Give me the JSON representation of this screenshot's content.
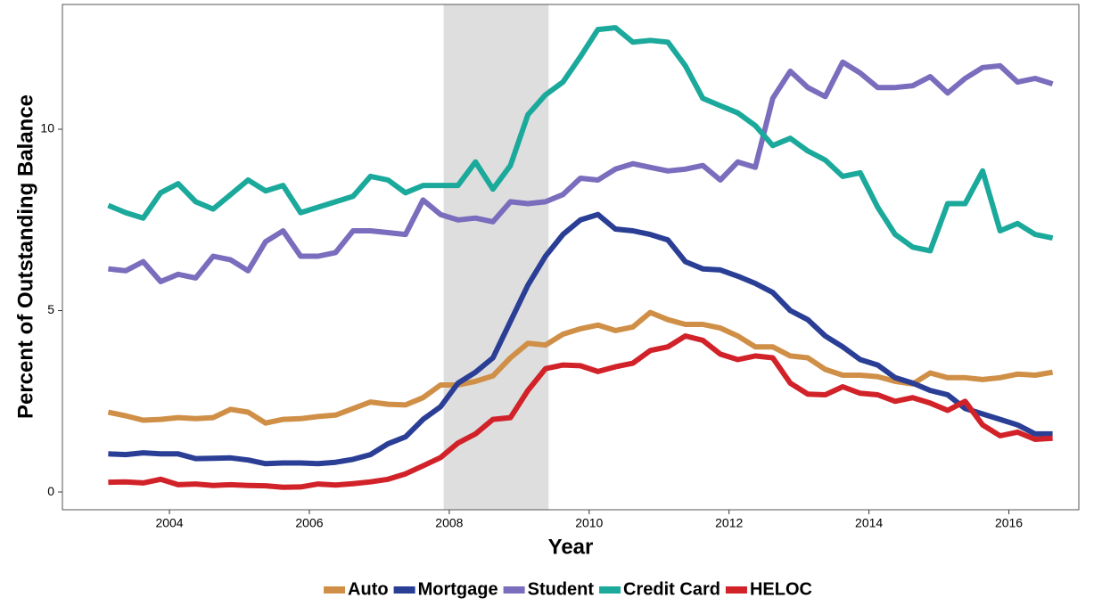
{
  "chart_data": {
    "type": "line",
    "xlabel": "Year",
    "ylabel": "Percent of Outstanding Balance",
    "x": [
      2003.125,
      2003.375,
      2003.625,
      2003.875,
      2004.125,
      2004.375,
      2004.625,
      2004.875,
      2005.125,
      2005.375,
      2005.625,
      2005.875,
      2006.125,
      2006.375,
      2006.625,
      2006.875,
      2007.125,
      2007.375,
      2007.625,
      2007.875,
      2008.125,
      2008.375,
      2008.625,
      2008.875,
      2009.125,
      2009.375,
      2009.625,
      2009.875,
      2010.125,
      2010.375,
      2010.625,
      2010.875,
      2011.125,
      2011.375,
      2011.625,
      2011.875,
      2012.125,
      2012.375,
      2012.625,
      2012.875,
      2013.125,
      2013.375,
      2013.625,
      2013.875,
      2014.125,
      2014.375,
      2014.625,
      2014.875,
      2015.125,
      2015.375,
      2015.625,
      2015.875,
      2016.125,
      2016.375,
      2016.625
    ],
    "series": [
      {
        "name": "Auto",
        "color": "#d08f47",
        "values": [
          2.2,
          2.1,
          1.98,
          2.0,
          2.05,
          2.02,
          2.05,
          2.28,
          2.2,
          1.9,
          2.0,
          2.02,
          2.08,
          2.12,
          2.3,
          2.48,
          2.42,
          2.4,
          2.6,
          2.95,
          2.95,
          3.05,
          3.2,
          3.7,
          4.1,
          4.05,
          4.35,
          4.5,
          4.6,
          4.45,
          4.55,
          4.95,
          4.75,
          4.62,
          4.62,
          4.52,
          4.3,
          4.0,
          4.0,
          3.75,
          3.7,
          3.38,
          3.22,
          3.22,
          3.18,
          3.05,
          2.98,
          3.28,
          3.15,
          3.15,
          3.1,
          3.15,
          3.25,
          3.22,
          3.3
        ]
      },
      {
        "name": "Mortgage",
        "color": "#2a3e96",
        "values": [
          1.05,
          1.03,
          1.08,
          1.05,
          1.05,
          0.92,
          0.93,
          0.94,
          0.88,
          0.78,
          0.8,
          0.8,
          0.78,
          0.82,
          0.9,
          1.03,
          1.33,
          1.52,
          2.0,
          2.35,
          3.0,
          3.3,
          3.7,
          4.7,
          5.7,
          6.5,
          7.1,
          7.5,
          7.65,
          7.25,
          7.2,
          7.1,
          6.95,
          6.35,
          6.15,
          6.12,
          5.95,
          5.75,
          5.5,
          5.0,
          4.75,
          4.3,
          4.0,
          3.65,
          3.5,
          3.15,
          3.0,
          2.8,
          2.68,
          2.3,
          2.15,
          2.0,
          1.85,
          1.6,
          1.6
        ]
      },
      {
        "name": "Student",
        "color": "#7b6dbd",
        "values": [
          6.15,
          6.1,
          6.35,
          5.8,
          6.0,
          5.9,
          6.5,
          6.4,
          6.1,
          6.9,
          7.2,
          6.5,
          6.5,
          6.6,
          7.2,
          7.2,
          7.15,
          7.1,
          8.05,
          7.65,
          7.5,
          7.55,
          7.45,
          8.0,
          7.95,
          8.0,
          8.2,
          8.65,
          8.6,
          8.9,
          9.05,
          8.95,
          8.85,
          8.9,
          9.0,
          8.6,
          9.1,
          8.95,
          10.85,
          11.6,
          11.15,
          10.9,
          11.85,
          11.55,
          11.15,
          11.15,
          11.2,
          11.45,
          11.0,
          11.4,
          11.7,
          11.75,
          11.3,
          11.4,
          11.25
        ]
      },
      {
        "name": "Credit Card",
        "color": "#1aa99b",
        "values": [
          7.9,
          7.7,
          7.55,
          8.25,
          8.5,
          8.0,
          7.8,
          8.2,
          8.6,
          8.3,
          8.45,
          7.7,
          7.85,
          8.0,
          8.15,
          8.7,
          8.6,
          8.25,
          8.45,
          8.45,
          8.45,
          9.1,
          8.35,
          9.0,
          10.4,
          10.95,
          11.3,
          12.0,
          12.75,
          12.8,
          12.4,
          12.45,
          12.4,
          11.75,
          10.85,
          10.65,
          10.45,
          10.1,
          9.55,
          9.75,
          9.4,
          9.15,
          8.7,
          8.8,
          7.85,
          7.1,
          6.75,
          6.65,
          7.95,
          7.95,
          8.85,
          7.2,
          7.4,
          7.1,
          7.0
        ]
      },
      {
        "name": "HELOC",
        "color": "#d22229",
        "values": [
          0.27,
          0.28,
          0.25,
          0.35,
          0.2,
          0.22,
          0.18,
          0.2,
          0.18,
          0.17,
          0.13,
          0.14,
          0.22,
          0.19,
          0.23,
          0.28,
          0.35,
          0.5,
          0.72,
          0.95,
          1.35,
          1.6,
          2.0,
          2.05,
          2.8,
          3.4,
          3.5,
          3.48,
          3.32,
          3.45,
          3.55,
          3.9,
          4.0,
          4.3,
          4.18,
          3.8,
          3.65,
          3.75,
          3.7,
          3.0,
          2.7,
          2.68,
          2.9,
          2.72,
          2.68,
          2.5,
          2.6,
          2.45,
          2.25,
          2.5,
          1.85,
          1.55,
          1.65,
          1.45,
          1.48
        ]
      }
    ],
    "shaded_range": [
      2007.92,
      2009.42
    ],
    "shaded_color": "#dedede",
    "xlim": [
      2002.47,
      2017.0
    ],
    "xticks": [
      2004,
      2006,
      2008,
      2010,
      2012,
      2014,
      2016
    ],
    "ylim": [
      -0.49,
      13.44
    ],
    "yticks": [
      0,
      5,
      10
    ],
    "legend": "bottom"
  }
}
